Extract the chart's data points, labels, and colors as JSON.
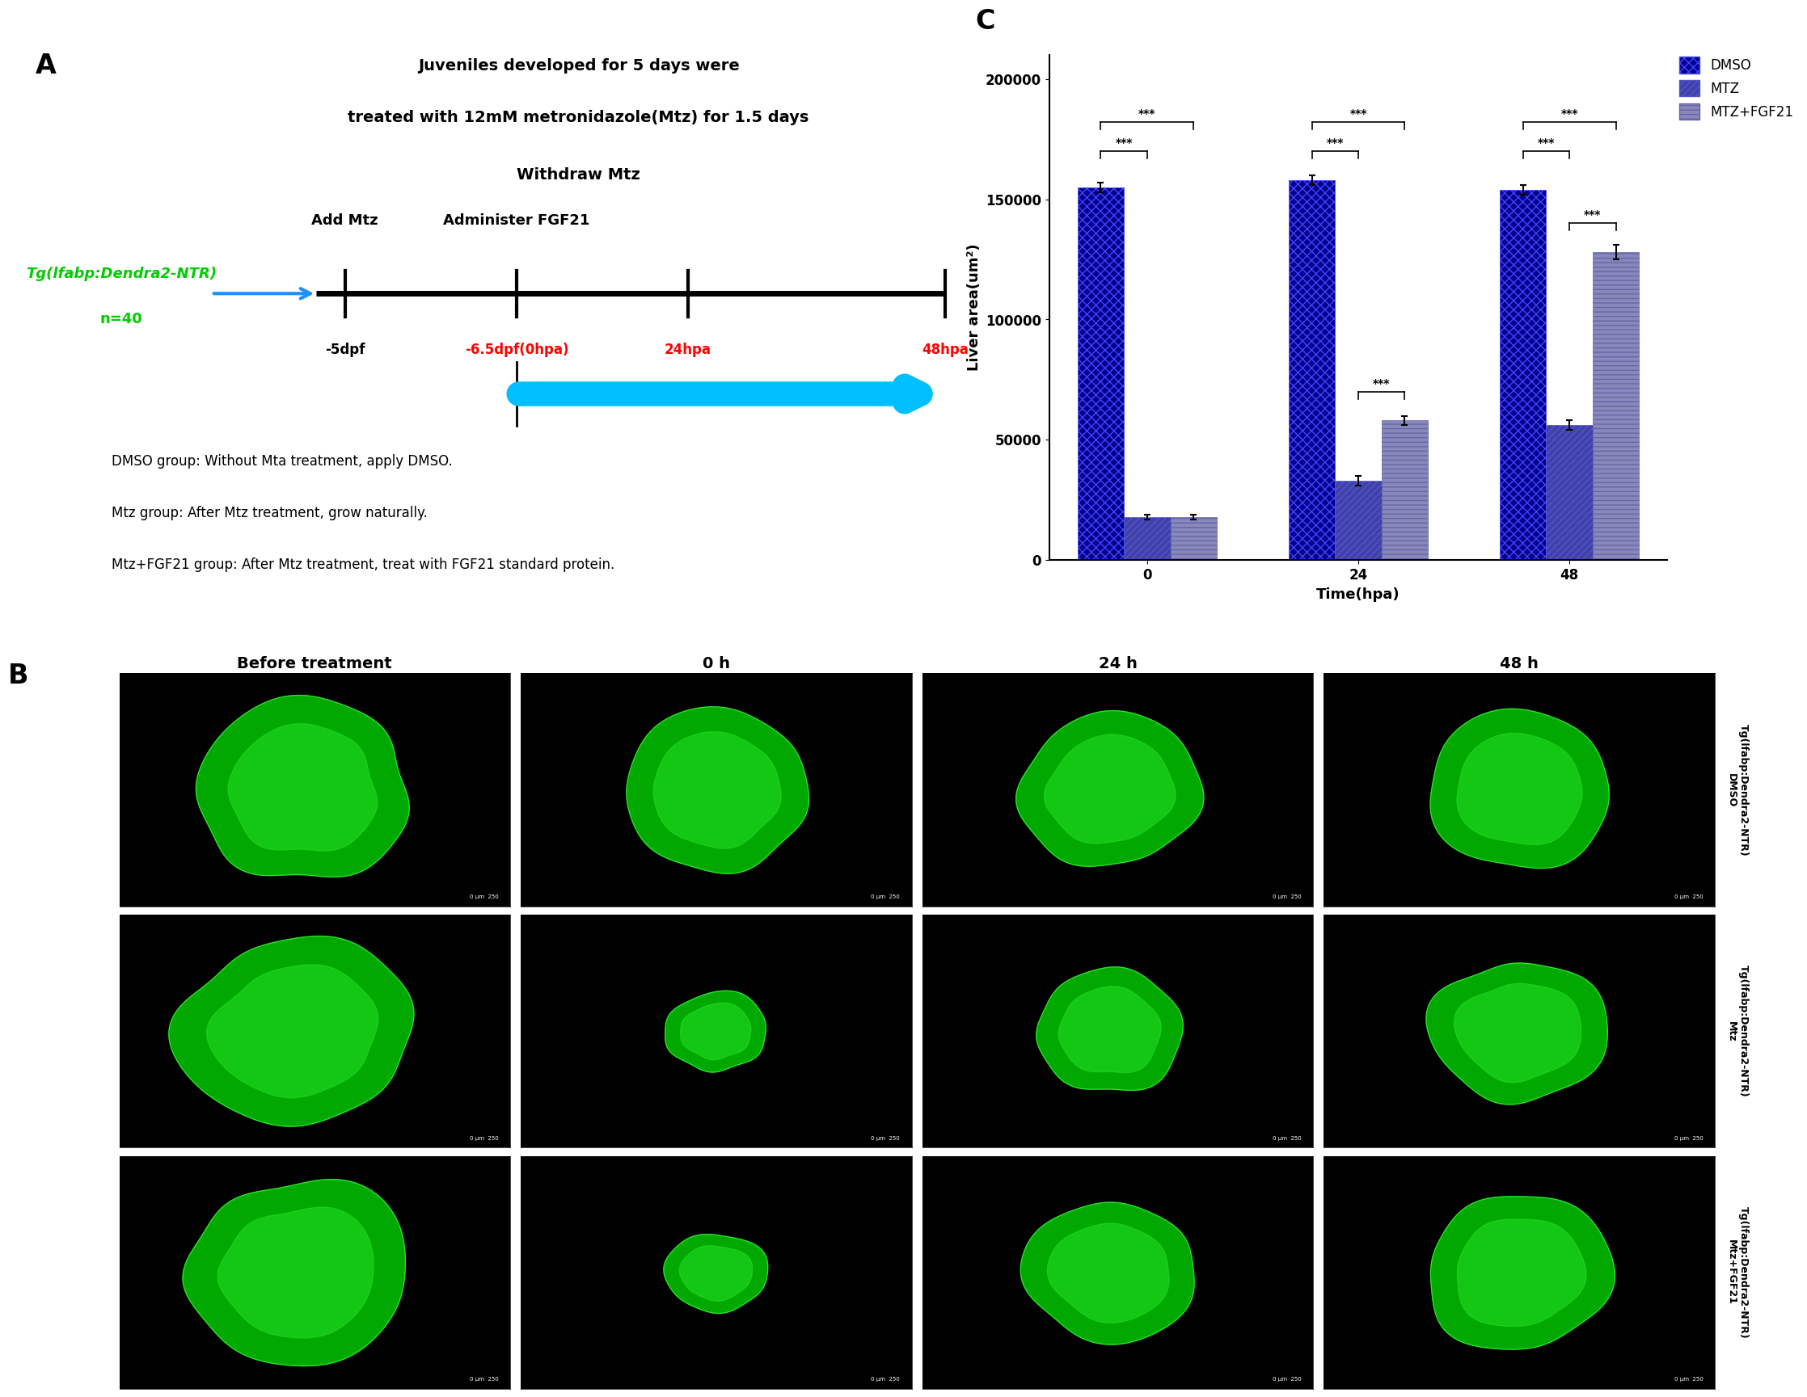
{
  "panel_C": {
    "groups": [
      "0",
      "24",
      "48"
    ],
    "dmso_values": [
      155000,
      158000,
      154000
    ],
    "dmso_errors": [
      2000,
      2000,
      2000
    ],
    "mtz_values": [
      18000,
      33000,
      56000
    ],
    "mtz_errors": [
      1000,
      2000,
      2000
    ],
    "mtz_fgf21_values": [
      18000,
      58000,
      128000
    ],
    "mtz_fgf21_errors": [
      1000,
      2000,
      3000
    ],
    "ylabel": "Liver area(um²)",
    "xlabel": "Time(hpa)",
    "ylim": [
      0,
      210000
    ],
    "yticks": [
      0,
      50000,
      100000,
      150000,
      200000
    ],
    "legend_labels": [
      "DMSO",
      "MTZ",
      "MTZ+FGF21"
    ]
  },
  "panel_A": {
    "title_line1": "Juveniles developed for 5 days were",
    "title_line2": "treated with 12mM metronidazole(Mtz) for 1.5 days",
    "title_line3": "Withdraw Mtz",
    "label_add_mtz": "Add Mtz",
    "label_admin_fgf21": "Administer FGF21",
    "label_5dpf": "-5dpf",
    "label_65dpf": "-6.5dpf(0hpa)",
    "label_24hpa": "24hpa",
    "label_48hpa": "48hpa",
    "tg_label": "Tg(lfabp:Dendra2-NTR)",
    "n_label": "n=40",
    "dmso_desc": "DMSO group: Without Mta treatment, apply DMSO.",
    "mtz_desc": "Mtz group: After Mtz treatment, grow naturally.",
    "mtz_fgf21_desc": "Mtz+FGF21 group: After Mtz treatment, treat with FGF21 standard protein."
  },
  "panel_B": {
    "col_labels": [
      "Before treatment",
      "0 h",
      "24 h",
      "48 h"
    ],
    "row_labels": [
      "DMSO",
      "Mtz",
      "Mtz+FGF21"
    ],
    "row_tg_labels": [
      "Tg(lfabp:Dendra2-NTR)",
      "Tg(lfabp:Dendra2-NTR)",
      "Tg(lfabp:Dendra2-NTR)"
    ]
  }
}
